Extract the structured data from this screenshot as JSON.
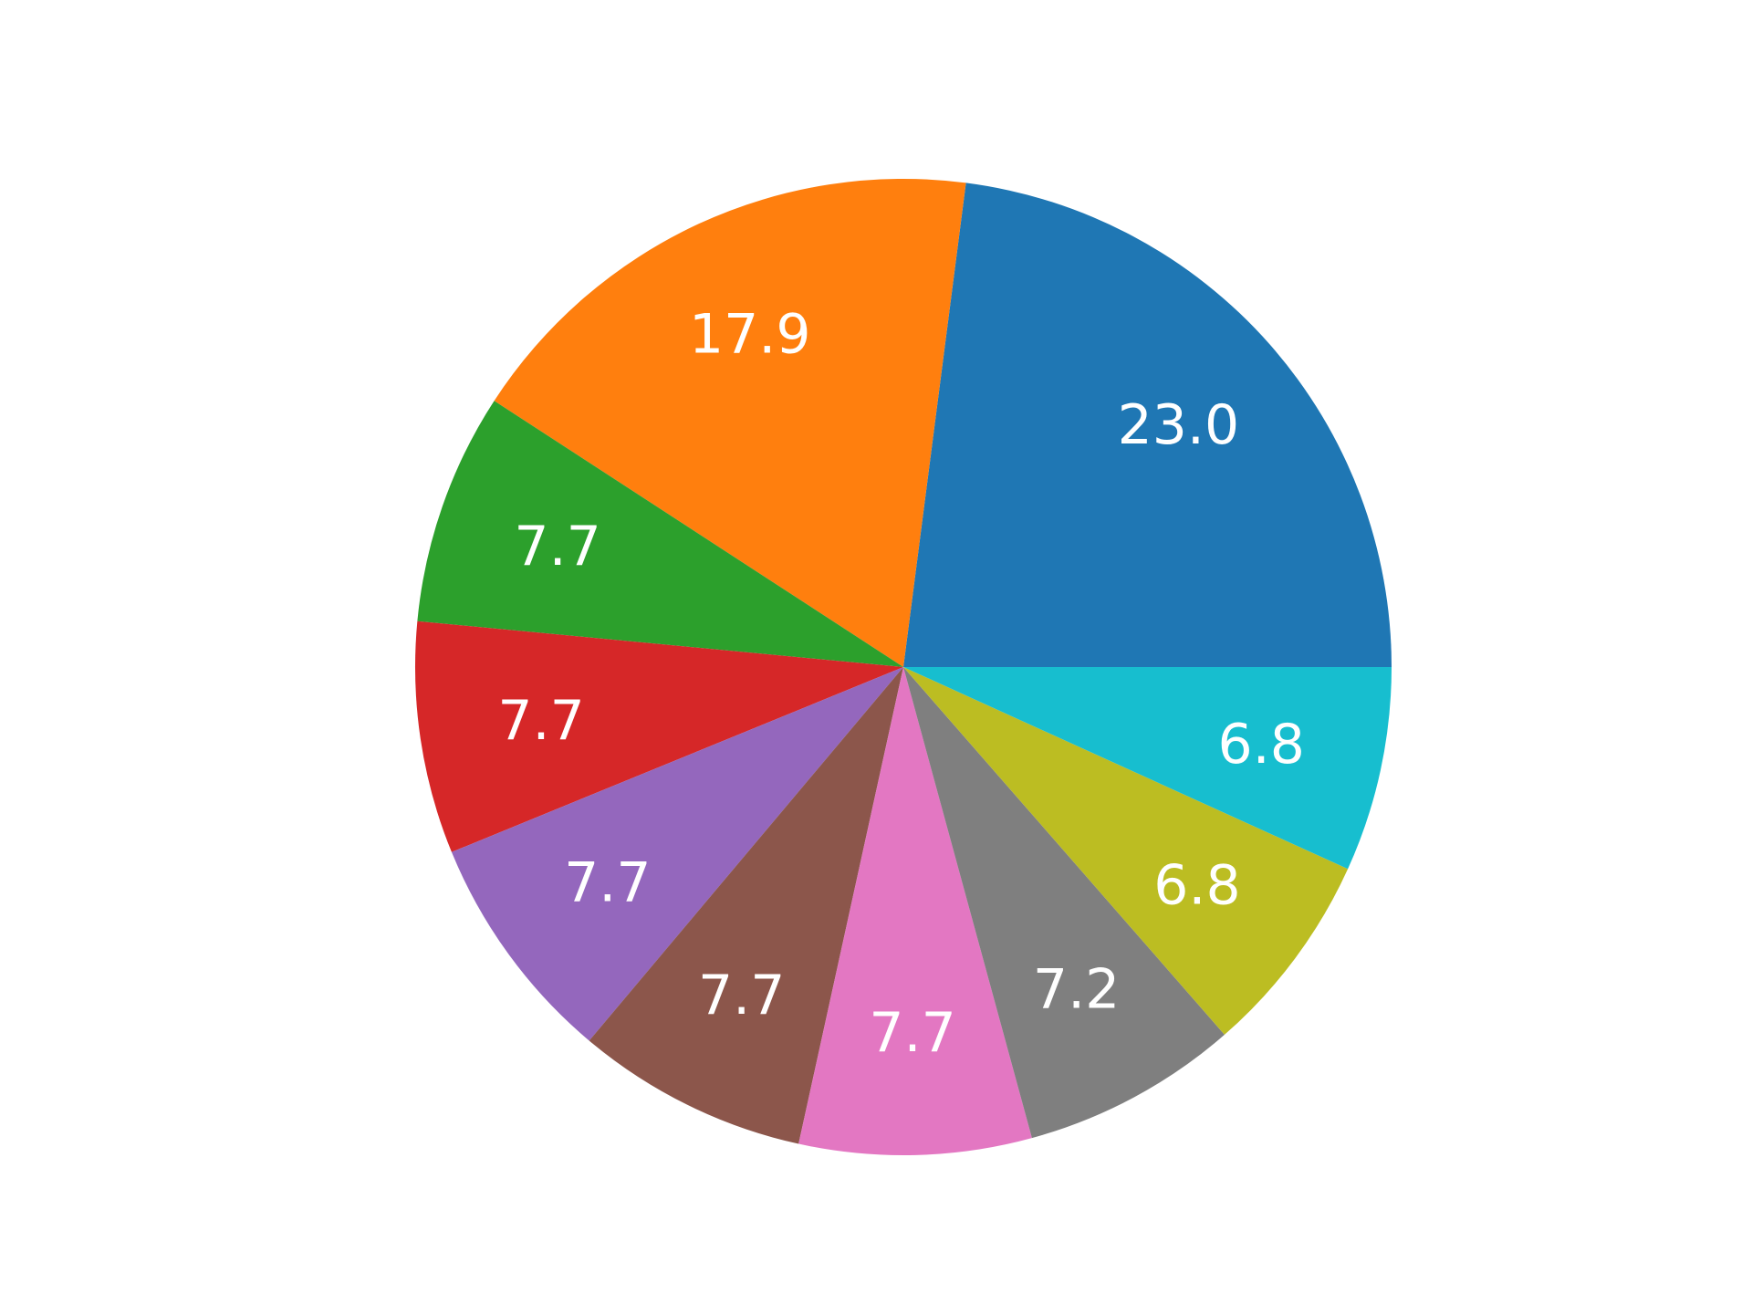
{
  "chart_data": {
    "type": "pie",
    "values": [
      23.0,
      17.9,
      7.7,
      7.7,
      7.7,
      7.7,
      7.7,
      7.2,
      6.8,
      6.8
    ],
    "labels": [
      "23.0",
      "17.9",
      "7.7",
      "7.7",
      "7.7",
      "7.7",
      "7.7",
      "7.2",
      "6.8",
      "6.8"
    ],
    "colors": [
      "#1f77b4",
      "#ff7f0e",
      "#2ca02c",
      "#d62728",
      "#9467bd",
      "#8c564b",
      "#e377c2",
      "#7f7f7f",
      "#bcbd22",
      "#17becf"
    ],
    "start_angle_deg": 0,
    "direction": "counterclockwise"
  }
}
